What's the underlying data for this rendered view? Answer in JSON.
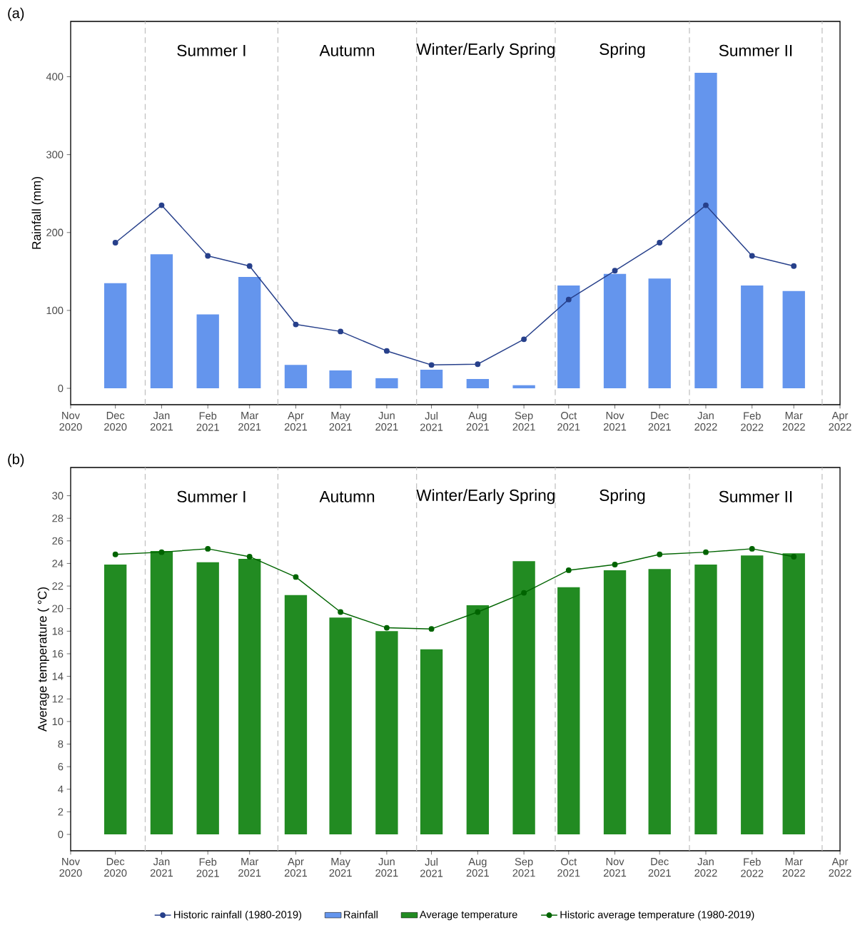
{
  "chart_data": [
    {
      "type": "bar",
      "title": "(a)",
      "ylabel": "Rainfall (mm)",
      "xlim": [
        "2020-11",
        "2022-04"
      ],
      "ylim": [
        -21,
        471
      ],
      "yticks": [
        0,
        100,
        200,
        300,
        400
      ],
      "xticks": [
        {
          "value": "2020-11",
          "label": "Nov 2020"
        },
        {
          "value": "2020-12",
          "label": "Dec 2020"
        },
        {
          "value": "2021-01",
          "label": "Jan 2021"
        },
        {
          "value": "2021-02",
          "label": "Feb 2021"
        },
        {
          "value": "2021-03",
          "label": "Mar 2021"
        },
        {
          "value": "2021-04",
          "label": "Apr 2021"
        },
        {
          "value": "2021-05",
          "label": "May 2021"
        },
        {
          "value": "2021-06",
          "label": "Jun 2021"
        },
        {
          "value": "2021-07",
          "label": "Jul 2021"
        },
        {
          "value": "2021-08",
          "label": "Aug 2021"
        },
        {
          "value": "2021-09",
          "label": "Sep 2021"
        },
        {
          "value": "2021-10",
          "label": "Oct 2021"
        },
        {
          "value": "2021-11",
          "label": "Nov 2021"
        },
        {
          "value": "2021-12",
          "label": "Dec 2021"
        },
        {
          "value": "2022-01",
          "label": "Jan 2022"
        },
        {
          "value": "2022-02",
          "label": "Feb 2022"
        },
        {
          "value": "2022-03",
          "label": "Mar 2022"
        },
        {
          "value": "2022-04",
          "label": "Apr 2022"
        }
      ],
      "x": [
        "2020-12",
        "2021-01",
        "2021-02",
        "2021-03",
        "2021-04",
        "2021-05",
        "2021-06",
        "2021-07",
        "2021-08",
        "2021-09",
        "2021-10",
        "2021-11",
        "2021-12",
        "2022-01",
        "2022-02",
        "2022-03"
      ],
      "series": [
        {
          "name": "Historic rainfall (1980-2019)",
          "type": "line",
          "marker": "circle",
          "color": "#27408b",
          "values": [
            187,
            235,
            170,
            157,
            82,
            73,
            48,
            30,
            31,
            63,
            114,
            151,
            187,
            235,
            170,
            157
          ]
        },
        {
          "name": "Rainfall",
          "color": "#6495ed",
          "values": [
            135,
            172,
            95,
            143,
            30,
            23,
            13,
            24,
            12,
            4,
            132,
            147,
            141,
            405,
            132,
            125
          ]
        }
      ],
      "ref_lines": [
        {
          "axis": "x",
          "value": "2020-12-21",
          "color": "#bebebe",
          "line_style": "dashed"
        },
        {
          "axis": "x",
          "value": "2021-03-20",
          "color": "#bebebe",
          "line_style": "dashed"
        },
        {
          "axis": "x",
          "value": "2021-06-21",
          "color": "#bebebe",
          "line_style": "dashed"
        },
        {
          "axis": "x",
          "value": "2021-09-22",
          "color": "#bebebe",
          "line_style": "dashed"
        },
        {
          "axis": "x",
          "value": "2021-12-21",
          "color": "#bebebe",
          "line_style": "dashed"
        },
        {
          "axis": "x",
          "value": "2022-03-20",
          "color": "#bebebe",
          "line_style": "dashed"
        }
      ],
      "annotations": [
        "Summer I",
        "Autumn",
        "Winter/Early Spring",
        "Spring",
        "Summer II"
      ],
      "legend": "bottom"
    },
    {
      "type": "bar",
      "title": "(b)",
      "ylabel": "Average temperature ( °C)",
      "xlim": [
        "2020-11",
        "2022-04"
      ],
      "ylim": [
        -1.45,
        32.5
      ],
      "yticks": [
        0,
        2,
        4,
        6,
        8,
        10,
        12,
        14,
        16,
        18,
        20,
        22,
        24,
        26,
        28,
        30
      ],
      "xticks": [
        {
          "value": "2020-11",
          "label": "Nov 2020"
        },
        {
          "value": "2020-12",
          "label": "Dec 2020"
        },
        {
          "value": "2021-01",
          "label": "Jan 2021"
        },
        {
          "value": "2021-02",
          "label": "Feb 2021"
        },
        {
          "value": "2021-03",
          "label": "Mar 2021"
        },
        {
          "value": "2021-04",
          "label": "Apr 2021"
        },
        {
          "value": "2021-05",
          "label": "May 2021"
        },
        {
          "value": "2021-06",
          "label": "Jun 2021"
        },
        {
          "value": "2021-07",
          "label": "Jul 2021"
        },
        {
          "value": "2021-08",
          "label": "Aug 2021"
        },
        {
          "value": "2021-09",
          "label": "Sep 2021"
        },
        {
          "value": "2021-10",
          "label": "Oct 2021"
        },
        {
          "value": "2021-11",
          "label": "Nov 2021"
        },
        {
          "value": "2021-12",
          "label": "Dec 2021"
        },
        {
          "value": "2022-01",
          "label": "Jan 2022"
        },
        {
          "value": "2022-02",
          "label": "Feb 2022"
        },
        {
          "value": "2022-03",
          "label": "Mar 2022"
        },
        {
          "value": "2022-04",
          "label": "Apr 2022"
        }
      ],
      "x": [
        "2020-12",
        "2021-01",
        "2021-02",
        "2021-03",
        "2021-04",
        "2021-05",
        "2021-06",
        "2021-07",
        "2021-08",
        "2021-09",
        "2021-10",
        "2021-11",
        "2021-12",
        "2022-01",
        "2022-02",
        "2022-03"
      ],
      "series": [
        {
          "name": "Average temperature",
          "color": "#228b22",
          "values": [
            23.9,
            25.1,
            24.1,
            24.4,
            21.2,
            19.2,
            18.0,
            16.4,
            20.3,
            24.2,
            21.9,
            23.4,
            23.5,
            23.9,
            24.7,
            24.9
          ]
        },
        {
          "name": "Historic average temperature (1980-2019)",
          "type": "line",
          "marker": "circle",
          "color": "#006400",
          "values": [
            24.8,
            25.0,
            25.3,
            24.6,
            22.8,
            19.7,
            18.3,
            18.2,
            19.7,
            21.4,
            23.4,
            23.9,
            24.8,
            25.0,
            25.3,
            24.6
          ]
        }
      ],
      "ref_lines": [
        {
          "axis": "x",
          "value": "2020-12-21",
          "color": "#bebebe",
          "line_style": "dashed"
        },
        {
          "axis": "x",
          "value": "2021-03-20",
          "color": "#bebebe",
          "line_style": "dashed"
        },
        {
          "axis": "x",
          "value": "2021-06-21",
          "color": "#bebebe",
          "line_style": "dashed"
        },
        {
          "axis": "x",
          "value": "2021-09-22",
          "color": "#bebebe",
          "line_style": "dashed"
        },
        {
          "axis": "x",
          "value": "2021-12-21",
          "color": "#bebebe",
          "line_style": "dashed"
        },
        {
          "axis": "x",
          "value": "2022-03-20",
          "color": "#bebebe",
          "line_style": "dashed"
        }
      ],
      "annotations": [
        "Summer I",
        "Autumn",
        "Winter/Early Spring",
        "Spring",
        "Summer II"
      ],
      "legend": "bottom"
    }
  ]
}
